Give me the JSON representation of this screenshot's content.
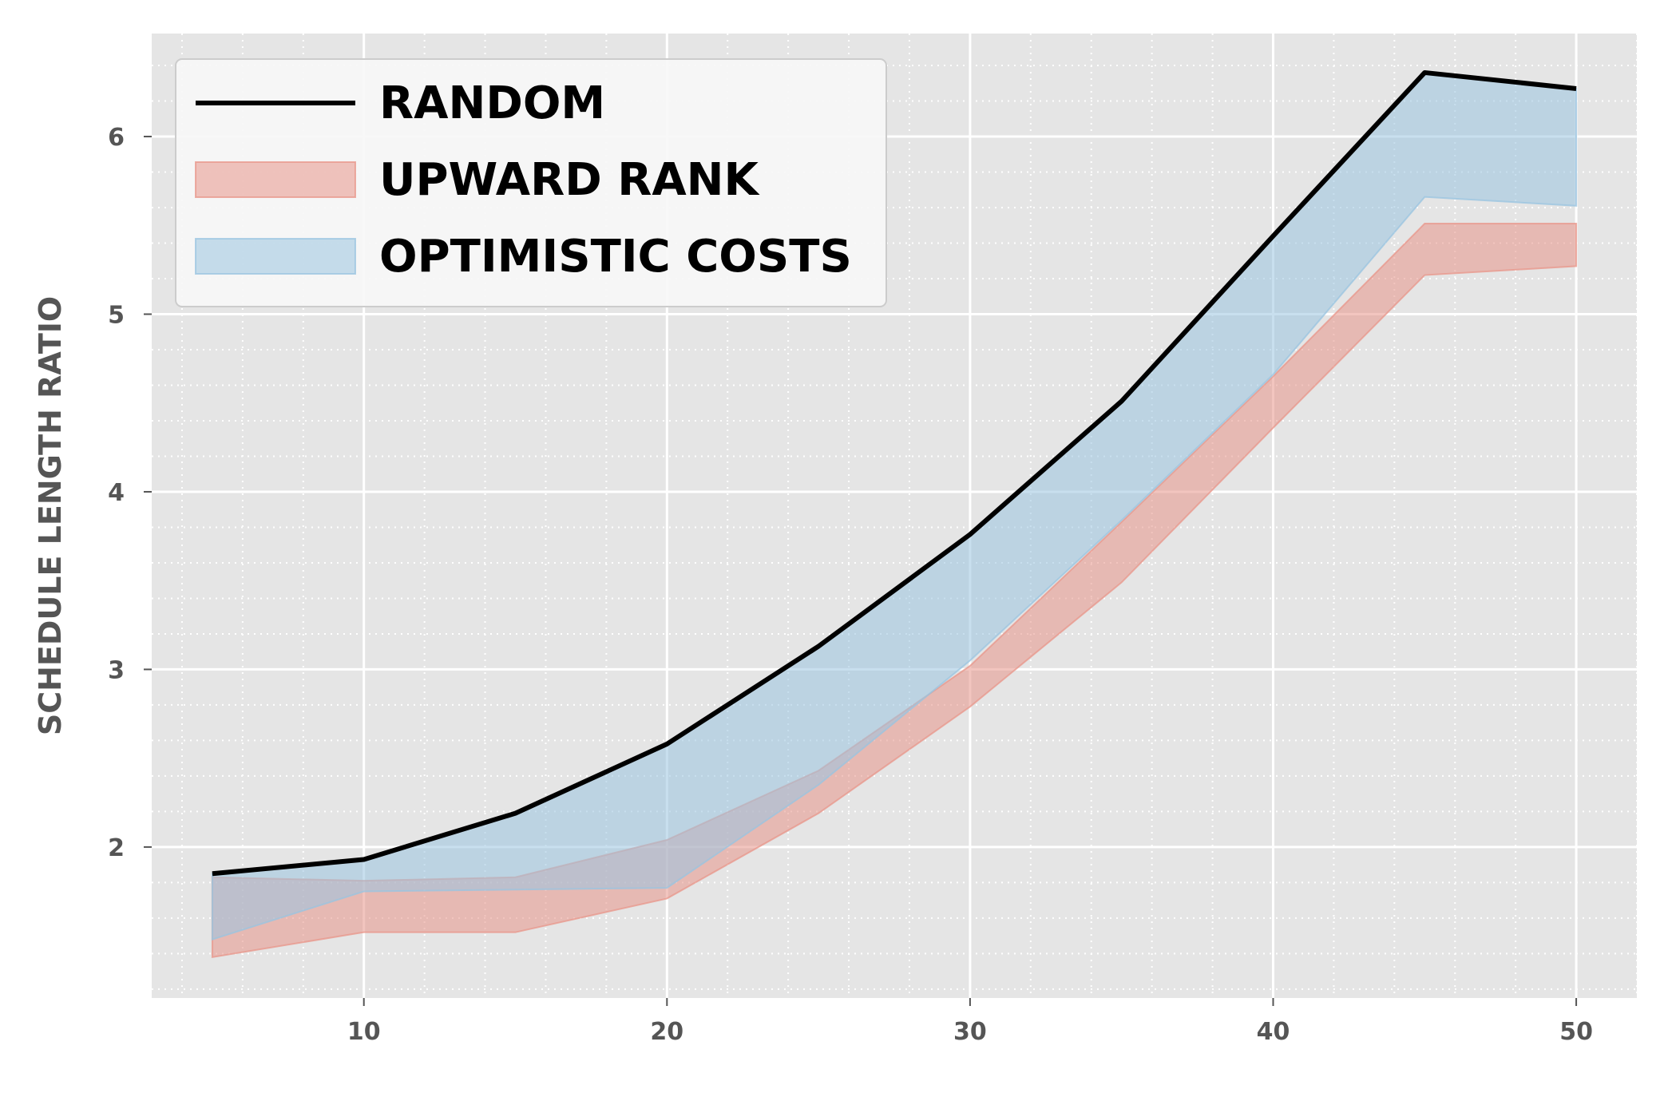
{
  "chart_data": {
    "type": "area",
    "title": "",
    "xlabel": "",
    "ylabel": "SCHEDULE LENGTH RATIO",
    "xlim": [
      3,
      52
    ],
    "ylim": [
      1.15,
      6.58
    ],
    "x_ticks": [
      10,
      20,
      30,
      40,
      50
    ],
    "y_ticks": [
      2,
      3,
      4,
      5,
      6
    ],
    "x_minor_step": 2,
    "y_minor_step": 0.2,
    "grid": true,
    "legend_position": "upper-left",
    "x": [
      5,
      10,
      15,
      20,
      25,
      30,
      35,
      40,
      45,
      50
    ],
    "series": [
      {
        "name": "RANDOM",
        "kind": "line",
        "color": "#000000",
        "values": [
          1.85,
          1.93,
          2.19,
          2.58,
          3.13,
          3.76,
          4.51,
          5.44,
          6.36,
          6.27
        ]
      },
      {
        "name": "UPWARD RANK",
        "kind": "band",
        "color": "#e8958a",
        "lower": [
          1.38,
          1.52,
          1.52,
          1.71,
          2.19,
          2.79,
          3.49,
          4.36,
          5.22,
          5.27
        ],
        "upper": [
          1.83,
          1.81,
          1.83,
          2.04,
          2.43,
          3.02,
          3.83,
          4.65,
          5.51,
          5.51
        ]
      },
      {
        "name": "OPTIMISTIC COSTS",
        "kind": "band",
        "color": "#9ac4e0",
        "lower": [
          1.48,
          1.75,
          1.76,
          1.77,
          2.35,
          3.05,
          3.84,
          4.66,
          5.66,
          5.61
        ],
        "upper": [
          1.85,
          1.93,
          2.19,
          2.58,
          3.13,
          3.76,
          4.51,
          5.44,
          6.36,
          6.27
        ]
      }
    ]
  }
}
